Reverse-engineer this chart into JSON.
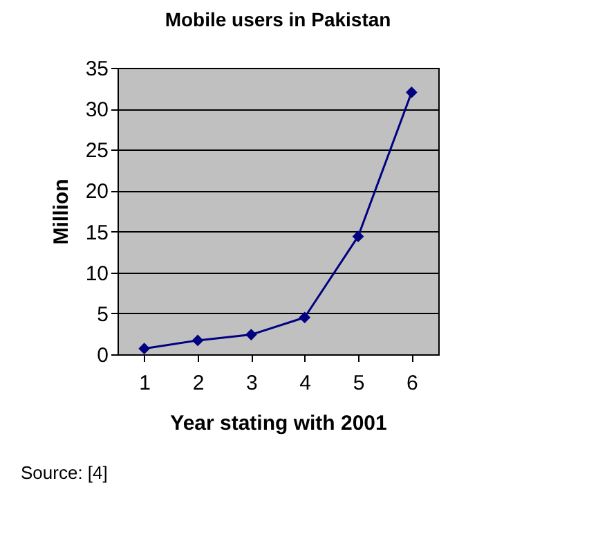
{
  "chart_data": {
    "type": "line",
    "title": "Mobile users in Pakistan",
    "xlabel": "Year stating with 2001",
    "ylabel": "Million",
    "categories": [
      "1",
      "2",
      "3",
      "4",
      "5",
      "6"
    ],
    "series": [
      {
        "color": "#000080",
        "values": [
          0.7,
          1.7,
          2.4,
          4.5,
          14.4,
          32
        ]
      }
    ],
    "ylim": [
      0,
      35
    ],
    "yticks": [
      0,
      5,
      10,
      15,
      20,
      25,
      30,
      35
    ],
    "grid": "y",
    "marker": "diamond",
    "line_style": "solid",
    "legend": false,
    "annotations": [
      "Source: [4]"
    ]
  }
}
